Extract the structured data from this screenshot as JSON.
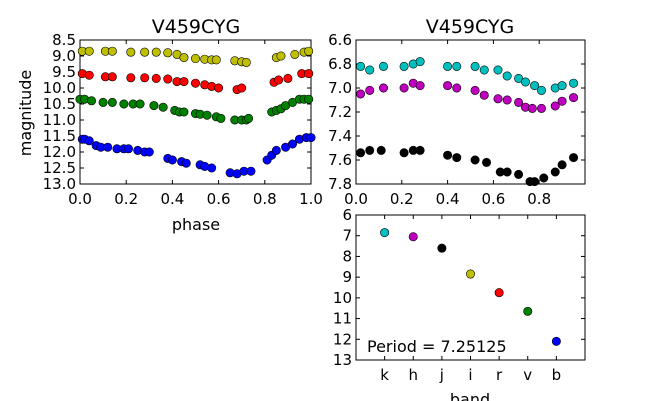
{
  "chart_data": [
    {
      "id": "left",
      "type": "scatter",
      "title": "V459CYG",
      "xlabel": "phase",
      "ylabel": "magnitude",
      "xlim": [
        0.0,
        1.0
      ],
      "ylim": [
        8.5,
        13.0
      ],
      "y_inverted": true,
      "xticks": [
        "0.0",
        "0.2",
        "0.4",
        "0.6",
        "0.8",
        "1.0"
      ],
      "yticks": [
        "8.5",
        "9.0",
        "9.5",
        "10.0",
        "10.5",
        "11.0",
        "11.5",
        "12.0",
        "12.5",
        "13.0"
      ],
      "series": [
        {
          "color": "#bfbf00",
          "points": [
            [
              0.01,
              8.85
            ],
            [
              0.04,
              8.85
            ],
            [
              0.11,
              8.85
            ],
            [
              0.14,
              8.85
            ],
            [
              0.22,
              8.88
            ],
            [
              0.28,
              8.88
            ],
            [
              0.33,
              8.88
            ],
            [
              0.38,
              8.9
            ],
            [
              0.42,
              8.95
            ],
            [
              0.45,
              9.05
            ],
            [
              0.5,
              9.08
            ],
            [
              0.54,
              9.1
            ],
            [
              0.57,
              9.12
            ],
            [
              0.59,
              9.12
            ],
            [
              0.67,
              9.15
            ],
            [
              0.7,
              9.18
            ],
            [
              0.72,
              9.2
            ],
            [
              0.85,
              9.05
            ],
            [
              0.87,
              9.0
            ],
            [
              0.93,
              8.95
            ],
            [
              0.97,
              8.88
            ],
            [
              0.99,
              8.85
            ]
          ]
        },
        {
          "color": "#ff0000",
          "points": [
            [
              0.01,
              9.55
            ],
            [
              0.04,
              9.6
            ],
            [
              0.11,
              9.65
            ],
            [
              0.14,
              9.65
            ],
            [
              0.22,
              9.68
            ],
            [
              0.28,
              9.68
            ],
            [
              0.33,
              9.7
            ],
            [
              0.38,
              9.72
            ],
            [
              0.42,
              9.8
            ],
            [
              0.45,
              9.8
            ],
            [
              0.5,
              9.85
            ],
            [
              0.54,
              9.9
            ],
            [
              0.57,
              9.95
            ],
            [
              0.6,
              10.0
            ],
            [
              0.68,
              10.05
            ],
            [
              0.7,
              10.0
            ],
            [
              0.84,
              9.82
            ],
            [
              0.86,
              9.75
            ],
            [
              0.9,
              9.7
            ],
            [
              0.96,
              9.55
            ],
            [
              0.99,
              9.55
            ]
          ]
        },
        {
          "color": "#008000",
          "points": [
            [
              0.0,
              10.35
            ],
            [
              0.02,
              10.35
            ],
            [
              0.05,
              10.4
            ],
            [
              0.1,
              10.45
            ],
            [
              0.14,
              10.45
            ],
            [
              0.19,
              10.5
            ],
            [
              0.23,
              10.5
            ],
            [
              0.26,
              10.5
            ],
            [
              0.32,
              10.55
            ],
            [
              0.36,
              10.6
            ],
            [
              0.41,
              10.7
            ],
            [
              0.43,
              10.75
            ],
            [
              0.45,
              10.75
            ],
            [
              0.5,
              10.8
            ],
            [
              0.52,
              10.82
            ],
            [
              0.55,
              10.85
            ],
            [
              0.59,
              10.9
            ],
            [
              0.61,
              10.95
            ],
            [
              0.67,
              11.0
            ],
            [
              0.7,
              11.0
            ],
            [
              0.72,
              11.0
            ],
            [
              0.73,
              10.95
            ],
            [
              0.83,
              10.75
            ],
            [
              0.85,
              10.7
            ],
            [
              0.87,
              10.65
            ],
            [
              0.89,
              10.55
            ],
            [
              0.92,
              10.45
            ],
            [
              0.95,
              10.35
            ],
            [
              0.97,
              10.35
            ],
            [
              0.99,
              10.35
            ]
          ]
        },
        {
          "color": "#0000ff",
          "points": [
            [
              0.01,
              11.6
            ],
            [
              0.02,
              11.6
            ],
            [
              0.04,
              11.65
            ],
            [
              0.07,
              11.8
            ],
            [
              0.09,
              11.85
            ],
            [
              0.12,
              11.85
            ],
            [
              0.16,
              11.9
            ],
            [
              0.19,
              11.9
            ],
            [
              0.21,
              11.9
            ],
            [
              0.25,
              11.95
            ],
            [
              0.28,
              12.0
            ],
            [
              0.3,
              12.0
            ],
            [
              0.38,
              12.2
            ],
            [
              0.4,
              12.25
            ],
            [
              0.44,
              12.3
            ],
            [
              0.46,
              12.35
            ],
            [
              0.52,
              12.4
            ],
            [
              0.54,
              12.45
            ],
            [
              0.57,
              12.5
            ],
            [
              0.65,
              12.65
            ],
            [
              0.68,
              12.68
            ],
            [
              0.71,
              12.6
            ],
            [
              0.74,
              12.6
            ],
            [
              0.81,
              12.25
            ],
            [
              0.83,
              12.1
            ],
            [
              0.85,
              11.95
            ],
            [
              0.89,
              11.85
            ],
            [
              0.92,
              11.75
            ],
            [
              0.95,
              11.6
            ],
            [
              0.98,
              11.55
            ],
            [
              1.0,
              11.55
            ]
          ]
        }
      ]
    },
    {
      "id": "right-top",
      "type": "scatter",
      "title": "V459CYG",
      "xlim": [
        0.0,
        1.0
      ],
      "ylim": [
        6.6,
        7.8
      ],
      "y_inverted": true,
      "xticks": [
        "0.0",
        "0.2",
        "0.4",
        "0.6",
        "0.8"
      ],
      "yticks": [
        "6.6",
        "6.8",
        "7.0",
        "7.2",
        "7.4",
        "7.6",
        "7.8"
      ],
      "series": [
        {
          "color": "#00bfbf",
          "points": [
            [
              0.02,
              6.82
            ],
            [
              0.06,
              6.85
            ],
            [
              0.12,
              6.82
            ],
            [
              0.21,
              6.82
            ],
            [
              0.25,
              6.8
            ],
            [
              0.28,
              6.78
            ],
            [
              0.4,
              6.82
            ],
            [
              0.44,
              6.82
            ],
            [
              0.52,
              6.82
            ],
            [
              0.56,
              6.85
            ],
            [
              0.62,
              6.85
            ],
            [
              0.66,
              6.9
            ],
            [
              0.71,
              6.92
            ],
            [
              0.74,
              6.95
            ],
            [
              0.78,
              6.98
            ],
            [
              0.81,
              7.02
            ],
            [
              0.87,
              7.0
            ],
            [
              0.9,
              6.98
            ],
            [
              0.95,
              6.96
            ]
          ]
        },
        {
          "color": "#bf00bf",
          "points": [
            [
              0.02,
              7.05
            ],
            [
              0.06,
              7.02
            ],
            [
              0.12,
              7.0
            ],
            [
              0.21,
              7.0
            ],
            [
              0.25,
              6.96
            ],
            [
              0.28,
              6.98
            ],
            [
              0.4,
              6.98
            ],
            [
              0.44,
              7.0
            ],
            [
              0.52,
              7.02
            ],
            [
              0.56,
              7.06
            ],
            [
              0.62,
              7.09
            ],
            [
              0.66,
              7.1
            ],
            [
              0.71,
              7.12
            ],
            [
              0.74,
              7.16
            ],
            [
              0.77,
              7.17
            ],
            [
              0.81,
              7.17
            ],
            [
              0.87,
              7.15
            ],
            [
              0.9,
              7.11
            ],
            [
              0.95,
              7.08
            ]
          ]
        },
        {
          "color": "#000000",
          "points": [
            [
              0.02,
              7.54
            ],
            [
              0.06,
              7.52
            ],
            [
              0.11,
              7.52
            ],
            [
              0.21,
              7.54
            ],
            [
              0.25,
              7.52
            ],
            [
              0.28,
              7.52
            ],
            [
              0.4,
              7.56
            ],
            [
              0.44,
              7.58
            ],
            [
              0.52,
              7.6
            ],
            [
              0.57,
              7.62
            ],
            [
              0.63,
              7.7
            ],
            [
              0.66,
              7.7
            ],
            [
              0.71,
              7.72
            ],
            [
              0.76,
              7.78
            ],
            [
              0.78,
              7.78
            ],
            [
              0.82,
              7.75
            ],
            [
              0.87,
              7.7
            ],
            [
              0.9,
              7.64
            ],
            [
              0.95,
              7.58
            ]
          ]
        }
      ]
    },
    {
      "id": "right-bottom",
      "type": "scatter",
      "xlabel": "band",
      "ylim": [
        6,
        13
      ],
      "y_inverted": true,
      "yticks": [
        "6",
        "7",
        "8",
        "9",
        "10",
        "11",
        "12",
        "13"
      ],
      "categories": [
        "k",
        "h",
        "j",
        "i",
        "r",
        "v",
        "b"
      ],
      "values": [
        6.85,
        7.05,
        7.6,
        8.85,
        9.75,
        10.65,
        12.1
      ],
      "colors": [
        "#00bfbf",
        "#bf00bf",
        "#000000",
        "#bfbf00",
        "#ff0000",
        "#008000",
        "#0000ff"
      ],
      "annotation": "Period = 7.25125"
    }
  ]
}
